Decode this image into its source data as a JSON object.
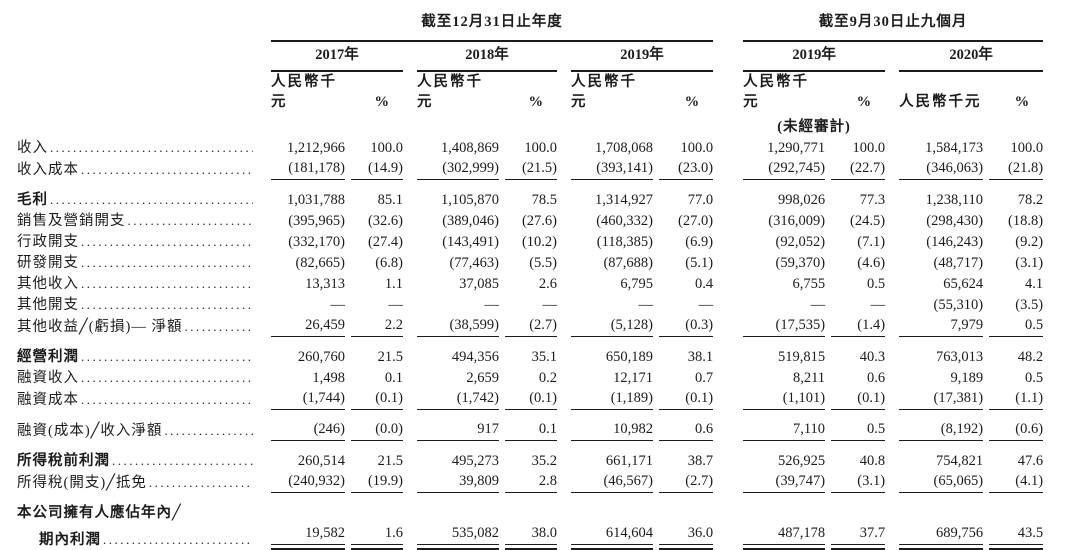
{
  "table": {
    "section_headers": {
      "fy": "截至12月31日止年度",
      "ninem": "截至9月30日止九個月"
    },
    "year_headers": [
      "2017年",
      "2018年",
      "2019年",
      "2019年",
      "2020年"
    ],
    "unit_header": "人民幣千元",
    "pct_header": "%",
    "unaudited_note": "(未經審計)",
    "rows": [
      {
        "label": "收入",
        "leader": true,
        "values": [
          "1,212,966",
          "100.0",
          "1,408,869",
          "100.0",
          "1,708,068",
          "100.0",
          "1,290,771",
          "100.0",
          "1,584,173",
          "100.0"
        ]
      },
      {
        "label": "收入成本",
        "leader": true,
        "rule": "single",
        "values": [
          "(181,178)",
          "(14.9)",
          "(302,999)",
          "(21.5)",
          "(393,141)",
          "(23.0)",
          "(292,745)",
          "(22.7)",
          "(346,063)",
          "(21.8)"
        ]
      },
      {
        "label": "毛利",
        "bold": true,
        "leader": true,
        "gap_above": true,
        "values": [
          "1,031,788",
          "85.1",
          "1,105,870",
          "78.5",
          "1,314,927",
          "77.0",
          "998,026",
          "77.3",
          "1,238,110",
          "78.2"
        ]
      },
      {
        "label": "銷售及營銷開支",
        "leader": true,
        "values": [
          "(395,965)",
          "(32.6)",
          "(389,046)",
          "(27.6)",
          "(460,332)",
          "(27.0)",
          "(316,009)",
          "(24.5)",
          "(298,430)",
          "(18.8)"
        ]
      },
      {
        "label": "行政開支",
        "leader": true,
        "values": [
          "(332,170)",
          "(27.4)",
          "(143,491)",
          "(10.2)",
          "(118,385)",
          "(6.9)",
          "(92,052)",
          "(7.1)",
          "(146,243)",
          "(9.2)"
        ]
      },
      {
        "label": "研發開支",
        "leader": true,
        "values": [
          "(82,665)",
          "(6.8)",
          "(77,463)",
          "(5.5)",
          "(87,688)",
          "(5.1)",
          "(59,370)",
          "(4.6)",
          "(48,717)",
          "(3.1)"
        ]
      },
      {
        "label": "其他收入",
        "leader": true,
        "values": [
          "13,313",
          "1.1",
          "37,085",
          "2.6",
          "6,795",
          "0.4",
          "6,755",
          "0.5",
          "65,624",
          "4.1"
        ]
      },
      {
        "label": "其他開支",
        "leader": true,
        "values": [
          "—",
          "—",
          "—",
          "—",
          "—",
          "—",
          "—",
          "—",
          "(55,310)",
          "(3.5)"
        ]
      },
      {
        "label": "其他收益╱(虧損)— 淨額",
        "leader": true,
        "rule": "single",
        "values": [
          "26,459",
          "2.2",
          "(38,599)",
          "(2.7)",
          "(5,128)",
          "(0.3)",
          "(17,535)",
          "(1.4)",
          "7,979",
          "0.5"
        ]
      },
      {
        "label": "經營利潤",
        "bold": true,
        "leader": true,
        "gap_above": true,
        "values": [
          "260,760",
          "21.5",
          "494,356",
          "35.1",
          "650,189",
          "38.1",
          "519,815",
          "40.3",
          "763,013",
          "48.2"
        ]
      },
      {
        "label": "融資收入",
        "leader": true,
        "values": [
          "1,498",
          "0.1",
          "2,659",
          "0.2",
          "12,171",
          "0.7",
          "8,211",
          "0.6",
          "9,189",
          "0.5"
        ]
      },
      {
        "label": "融資成本",
        "leader": true,
        "rule": "single",
        "values": [
          "(1,744)",
          "(0.1)",
          "(1,742)",
          "(0.1)",
          "(1,189)",
          "(0.1)",
          "(1,101)",
          "(0.1)",
          "(17,381)",
          "(1.1)"
        ]
      },
      {
        "label": "融資(成本)╱收入淨額",
        "leader": true,
        "rule": "single",
        "gap_above": true,
        "values": [
          "(246)",
          "(0.0)",
          "917",
          "0.1",
          "10,982",
          "0.6",
          "7,110",
          "0.5",
          "(8,192)",
          "(0.6)"
        ]
      },
      {
        "label": "所得稅前利潤",
        "bold": true,
        "leader": true,
        "gap_above": true,
        "values": [
          "260,514",
          "21.5",
          "495,273",
          "35.2",
          "661,171",
          "38.7",
          "526,925",
          "40.8",
          "754,821",
          "47.6"
        ]
      },
      {
        "label": "所得稅(開支)╱抵免",
        "leader": true,
        "rule": "single",
        "values": [
          "(240,932)",
          "(19.9)",
          "39,809",
          "2.8",
          "(46,567)",
          "(2.7)",
          "(39,747)",
          "(3.1)",
          "(65,065)",
          "(4.1)"
        ]
      },
      {
        "label": "本公司擁有人應佔年內╱",
        "bold": true,
        "leader": false,
        "gap_above": true,
        "values": []
      },
      {
        "label": "期內利潤",
        "bold": true,
        "leader": true,
        "indent": true,
        "rule": "double",
        "values": [
          "19,582",
          "1.6",
          "535,082",
          "38.0",
          "614,604",
          "36.0",
          "487,178",
          "37.7",
          "689,756",
          "43.5"
        ]
      }
    ]
  },
  "colors": {
    "text": "#1c1c1c",
    "background": "#ffffff",
    "rule": "#1c1c1c"
  }
}
